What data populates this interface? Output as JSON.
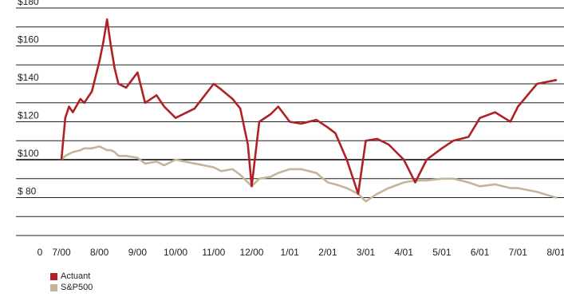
{
  "colors": {
    "actuant": "#b02024",
    "sp500": "#c4b49a",
    "grid": "#222222"
  },
  "chart_data": {
    "type": "line",
    "xlabel": "",
    "ylabel": "",
    "ylim": [
      60,
      180
    ],
    "y_ticks": [
      {
        "value": 180,
        "label": "$180"
      },
      {
        "value": 160,
        "label": "$160"
      },
      {
        "value": 140,
        "label": "$140"
      },
      {
        "value": 120,
        "label": "$120"
      },
      {
        "value": 100,
        "label": "$100"
      },
      {
        "value": 80,
        "label": "$  80"
      }
    ],
    "x_origin_label": "0",
    "x_ticks": [
      "7/00",
      "8/00",
      "9/00",
      "10/00",
      "11/00",
      "12/00",
      "1/01",
      "2/01",
      "3/01",
      "4/01",
      "5/01",
      "6/01",
      "7/01",
      "8/01"
    ],
    "x": [
      0,
      0.1,
      0.2,
      0.3,
      0.5,
      0.6,
      0.8,
      1.0,
      1.1,
      1.2,
      1.3,
      1.4,
      1.5,
      1.7,
      2.0,
      2.2,
      2.5,
      2.7,
      3.0,
      3.5,
      4.0,
      4.2,
      4.5,
      4.7,
      4.9,
      5.0,
      5.2,
      5.5,
      5.7,
      6.0,
      6.3,
      6.7,
      7.0,
      7.2,
      7.5,
      7.8,
      8.0,
      8.3,
      8.6,
      9.0,
      9.3,
      9.6,
      10.0,
      10.3,
      10.7,
      11.0,
      11.4,
      11.8,
      12.0,
      12.5,
      13.0
    ],
    "series": [
      {
        "name": "Actuant",
        "color_key": "actuant",
        "values": [
          100,
          122,
          128,
          125,
          132,
          130,
          136,
          152,
          162,
          174,
          160,
          148,
          140,
          138,
          146,
          130,
          134,
          128,
          122,
          127,
          140,
          137,
          132,
          127,
          108,
          86,
          120,
          124,
          128,
          120,
          119,
          121,
          117,
          114,
          100,
          82,
          110,
          111,
          108,
          100,
          88,
          100,
          106,
          110,
          112,
          122,
          125,
          120,
          128,
          140,
          142
        ]
      },
      {
        "name": "S&P500",
        "color_key": "sp500",
        "values": [
          100,
          102,
          103,
          104,
          105,
          106,
          106,
          107,
          106,
          105,
          105,
          104,
          102,
          102,
          101,
          98,
          99,
          97,
          100,
          98,
          96,
          94,
          95,
          92,
          88,
          86,
          90,
          91,
          93,
          95,
          95,
          93,
          88,
          87,
          85,
          82,
          78,
          82,
          85,
          88,
          89,
          89,
          90,
          90,
          88,
          86,
          87,
          85,
          85,
          83,
          80
        ]
      }
    ]
  },
  "legend": [
    {
      "label": "Actuant",
      "color_key": "actuant"
    },
    {
      "label": "S&P500",
      "color_key": "sp500"
    }
  ]
}
